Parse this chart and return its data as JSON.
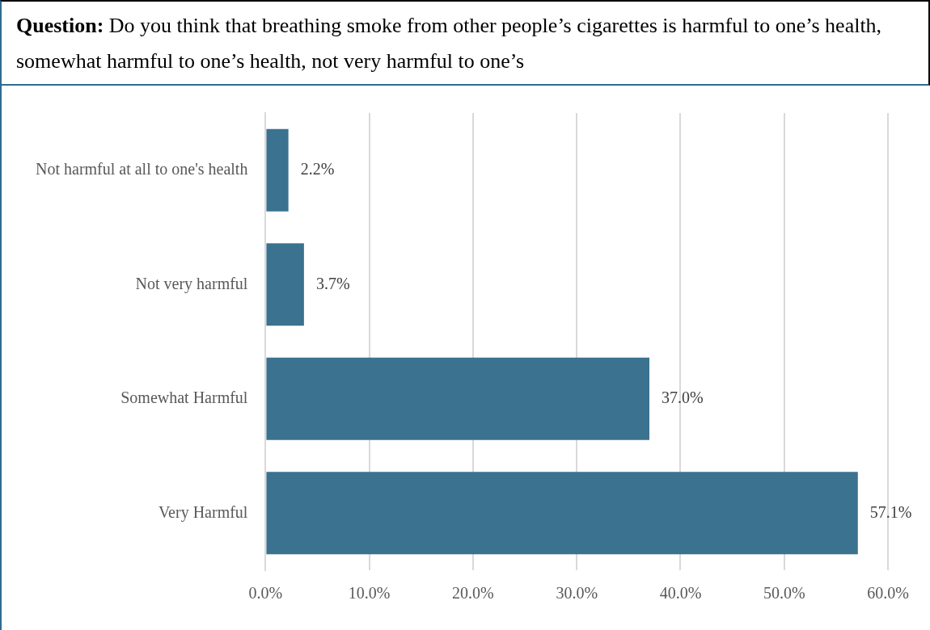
{
  "chart_data": {
    "type": "bar",
    "orientation": "horizontal",
    "title": "Question:  Do you think that breathing smoke from other people’s cigarettes is harmful to one’s health, somewhat harmful to one’s health, not very harmful to one’s",
    "categories": [
      "Not harmful at all to one's health",
      "Not very harmful",
      "Somewhat Harmful",
      "Very Harmful"
    ],
    "values": [
      2.2,
      3.7,
      37.0,
      57.1
    ],
    "color": "#3b7290",
    "value_labels": [
      "2.2%",
      "3.7%",
      "37.0%",
      "57.1%"
    ],
    "xlim": [
      0,
      60
    ],
    "xticks": [
      {
        "value": 0,
        "label": "0.0%"
      },
      {
        "value": 10,
        "label": "10.0%"
      },
      {
        "value": 20,
        "label": "20.0%"
      },
      {
        "value": 30,
        "label": "30.0%"
      },
      {
        "value": 40,
        "label": "40.0%"
      },
      {
        "value": 50,
        "label": "50.0%"
      },
      {
        "value": 60,
        "label": "60.0%"
      }
    ],
    "grid": "x",
    "legend": false
  }
}
